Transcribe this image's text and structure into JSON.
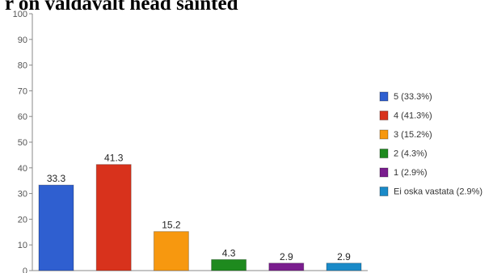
{
  "title": "r on valdavalt head sainted",
  "chart_data": {
    "type": "bar",
    "categories": [
      "5",
      "4",
      "3",
      "2",
      "1",
      "Ei oska vastata"
    ],
    "values": [
      33.3,
      41.3,
      15.2,
      4.3,
      2.9,
      2.9
    ],
    "value_labels": [
      "33.3",
      "41.3",
      "15.2",
      "4.3",
      "2.9",
      "2.9"
    ],
    "colors": [
      "#2f5fd0",
      "#d8321c",
      "#f7980f",
      "#1e8a1e",
      "#7a1d8e",
      "#1a8ac8"
    ],
    "legend": [
      "5  (33.3%)",
      "4  (41.3%)",
      "3  (15.2%)",
      "2  (4.3%)",
      "1  (2.9%)",
      "Ei oska vastata (2.9%)"
    ],
    "legend_position": "right",
    "ylim": [
      0,
      100
    ],
    "yticks": [
      0,
      10,
      20,
      30,
      40,
      50,
      60,
      70,
      80,
      90,
      100
    ],
    "grid": false
  }
}
